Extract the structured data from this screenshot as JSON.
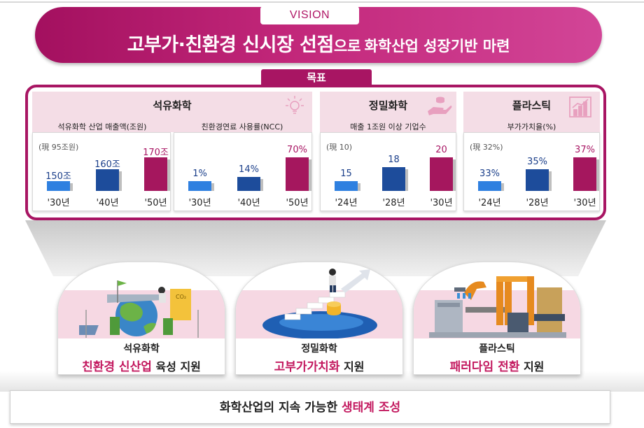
{
  "vision": {
    "tag": "VISION",
    "title_main": "고부가·친환경 신시장 선점",
    "title_particle": "으로",
    "title_rest": "화학산업 성장기반 마련"
  },
  "goal": {
    "label": "목표"
  },
  "panels": {
    "petro": {
      "title": "석유화학",
      "icon": "lightbulb-icon",
      "left": {
        "subtitle": "석유화학 산업 매출액(조원)",
        "reference": "(現 95조원)"
      },
      "right": {
        "subtitle": "친환경연료 사용률(NCC)"
      }
    },
    "fine": {
      "title": "정밀화학",
      "icon": "hand-coins-icon",
      "subtitle": "매출 1조원 이상 기업수",
      "reference": "(現 10)"
    },
    "plastic": {
      "title": "플라스틱",
      "icon": "growth-chart-icon",
      "subtitle": "부가가치율(%)",
      "reference": "(現 32%)"
    }
  },
  "chart_data": [
    {
      "type": "bar",
      "title": "석유화학 산업 매출액(조원)",
      "categories": [
        "'30년",
        "'40년",
        "'50년"
      ],
      "values": [
        150,
        160,
        170
      ],
      "value_labels": [
        "150조",
        "160조",
        "170조"
      ],
      "colors": [
        "#2f80e0",
        "#1d4c9b",
        "#a5175e"
      ]
    },
    {
      "type": "bar",
      "title": "친환경연료 사용률(NCC)",
      "categories": [
        "'30년",
        "'40년",
        "'50년"
      ],
      "values": [
        1,
        14,
        70
      ],
      "value_labels": [
        "1%",
        "14%",
        "70%"
      ],
      "colors": [
        "#2f80e0",
        "#1d4c9b",
        "#a5175e"
      ]
    },
    {
      "type": "bar",
      "title": "매출 1조원 이상 기업수",
      "categories": [
        "'24년",
        "'28년",
        "'30년"
      ],
      "values": [
        15,
        18,
        20
      ],
      "value_labels": [
        "15",
        "18",
        "20"
      ],
      "colors": [
        "#2f80e0",
        "#1d4c9b",
        "#a5175e"
      ]
    },
    {
      "type": "bar",
      "title": "부가가치율(%)",
      "categories": [
        "'24년",
        "'28년",
        "'30년"
      ],
      "values": [
        33,
        35,
        37
      ],
      "value_labels": [
        "33%",
        "35%",
        "37%"
      ],
      "colors": [
        "#2f80e0",
        "#1d4c9b",
        "#a5175e"
      ]
    }
  ],
  "cards": [
    {
      "small": "석유화학",
      "highlight": "친환경 신산업",
      "rest": "육성 지원",
      "image": "eco-earth-illustration"
    },
    {
      "small": "정밀화학",
      "highlight": "고부가가치화",
      "rest": "지원",
      "image": "coin-stairs-illustration"
    },
    {
      "small": "플라스틱",
      "highlight": "패러다임 전환",
      "rest": "지원",
      "image": "robot-factory-illustration"
    }
  ],
  "base": {
    "text": "화학산업의 지속 가능한",
    "highlight": "생태계 조성"
  }
}
